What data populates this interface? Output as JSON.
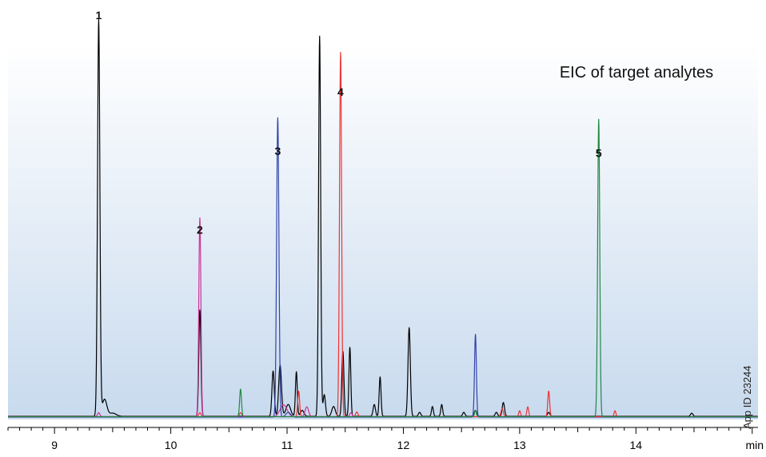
{
  "chart_data": {
    "type": "line",
    "title": "EIC of target analytes",
    "xlabel": "",
    "ylabel": "",
    "x_unit": "min",
    "xlim": [
      8.6,
      15.05
    ],
    "ylim": [
      0,
      100
    ],
    "x_ticks": [
      "9",
      "10",
      "11",
      "12",
      "13",
      "14"
    ],
    "watermark": "App ID 23244",
    "grid": false,
    "background_gradient": [
      "#ffffff",
      "#c8daee"
    ],
    "peak_labels": [
      {
        "label": "1",
        "x": 9.38,
        "y": 100
      },
      {
        "label": "2",
        "x": 10.25,
        "y": 45.5
      },
      {
        "label": "3",
        "x": 10.92,
        "y": 65.5
      },
      {
        "label": "4",
        "x": 11.46,
        "y": 80.5
      },
      {
        "label": "5",
        "x": 13.68,
        "y": 65
      }
    ],
    "series": [
      {
        "color": "#000000",
        "baseline": 0.4,
        "peaks": [
          {
            "x": 9.38,
            "h": 100.5,
            "w": 0.01
          },
          {
            "x": 9.43,
            "h": 4.3,
            "w": 0.02
          },
          {
            "x": 9.5,
            "h": 0.8,
            "w": 0.03
          },
          {
            "x": 10.25,
            "h": 27,
            "w": 0.009
          },
          {
            "x": 10.88,
            "h": 11.5,
            "w": 0.01
          },
          {
            "x": 10.94,
            "h": 13,
            "w": 0.012
          },
          {
            "x": 11.01,
            "h": 3,
            "w": 0.02
          },
          {
            "x": 11.08,
            "h": 11.3,
            "w": 0.008
          },
          {
            "x": 11.13,
            "h": 1.5,
            "w": 0.015
          },
          {
            "x": 11.28,
            "h": 96.5,
            "w": 0.009
          },
          {
            "x": 11.32,
            "h": 5.5,
            "w": 0.01
          },
          {
            "x": 11.4,
            "h": 2.5,
            "w": 0.015
          },
          {
            "x": 11.48,
            "h": 16.5,
            "w": 0.009
          },
          {
            "x": 11.54,
            "h": 17.5,
            "w": 0.008
          },
          {
            "x": 11.75,
            "h": 3,
            "w": 0.01
          },
          {
            "x": 11.8,
            "h": 10,
            "w": 0.008
          },
          {
            "x": 12.05,
            "h": 22.5,
            "w": 0.01
          },
          {
            "x": 12.14,
            "h": 1,
            "w": 0.01
          },
          {
            "x": 12.25,
            "h": 2.5,
            "w": 0.008
          },
          {
            "x": 12.33,
            "h": 3,
            "w": 0.008
          },
          {
            "x": 12.52,
            "h": 1,
            "w": 0.01
          },
          {
            "x": 12.62,
            "h": 1.5,
            "w": 0.01
          },
          {
            "x": 12.8,
            "h": 1,
            "w": 0.01
          },
          {
            "x": 12.86,
            "h": 3.5,
            "w": 0.01
          },
          {
            "x": 13.25,
            "h": 1,
            "w": 0.01
          },
          {
            "x": 14.48,
            "h": 0.8,
            "w": 0.01
          }
        ]
      },
      {
        "color": "#cc3399",
        "baseline": 0.3,
        "peaks": [
          {
            "x": 9.38,
            "h": 1,
            "w": 0.01
          },
          {
            "x": 10.25,
            "h": 50.5,
            "w": 0.009
          },
          {
            "x": 10.97,
            "h": 3,
            "w": 0.03
          },
          {
            "x": 11.17,
            "h": 2.5,
            "w": 0.015
          },
          {
            "x": 11.55,
            "h": 1,
            "w": 0.01
          }
        ]
      },
      {
        "color": "#3344aa",
        "baseline": 0.2,
        "peaks": [
          {
            "x": 10.92,
            "h": 76,
            "w": 0.01
          },
          {
            "x": 11.01,
            "h": 1.2,
            "w": 0.02
          },
          {
            "x": 12.62,
            "h": 21,
            "w": 0.008
          }
        ]
      },
      {
        "color": "#ee3333",
        "baseline": 0.3,
        "peaks": [
          {
            "x": 10.25,
            "h": 1,
            "w": 0.01
          },
          {
            "x": 10.6,
            "h": 1,
            "w": 0.01
          },
          {
            "x": 11.1,
            "h": 6.5,
            "w": 0.008
          },
          {
            "x": 11.46,
            "h": 92.5,
            "w": 0.009
          },
          {
            "x": 11.6,
            "h": 1.2,
            "w": 0.01
          },
          {
            "x": 12.85,
            "h": 2,
            "w": 0.01
          },
          {
            "x": 13.0,
            "h": 1.5,
            "w": 0.008
          },
          {
            "x": 13.07,
            "h": 2.5,
            "w": 0.008
          },
          {
            "x": 13.25,
            "h": 6.5,
            "w": 0.008
          },
          {
            "x": 13.82,
            "h": 1.5,
            "w": 0.008
          }
        ]
      },
      {
        "color": "#228844",
        "baseline": 0.3,
        "peaks": [
          {
            "x": 10.6,
            "h": 7,
            "w": 0.008
          },
          {
            "x": 12.62,
            "h": 1.5,
            "w": 0.008
          },
          {
            "x": 13.68,
            "h": 75.5,
            "w": 0.009
          }
        ]
      }
    ]
  }
}
